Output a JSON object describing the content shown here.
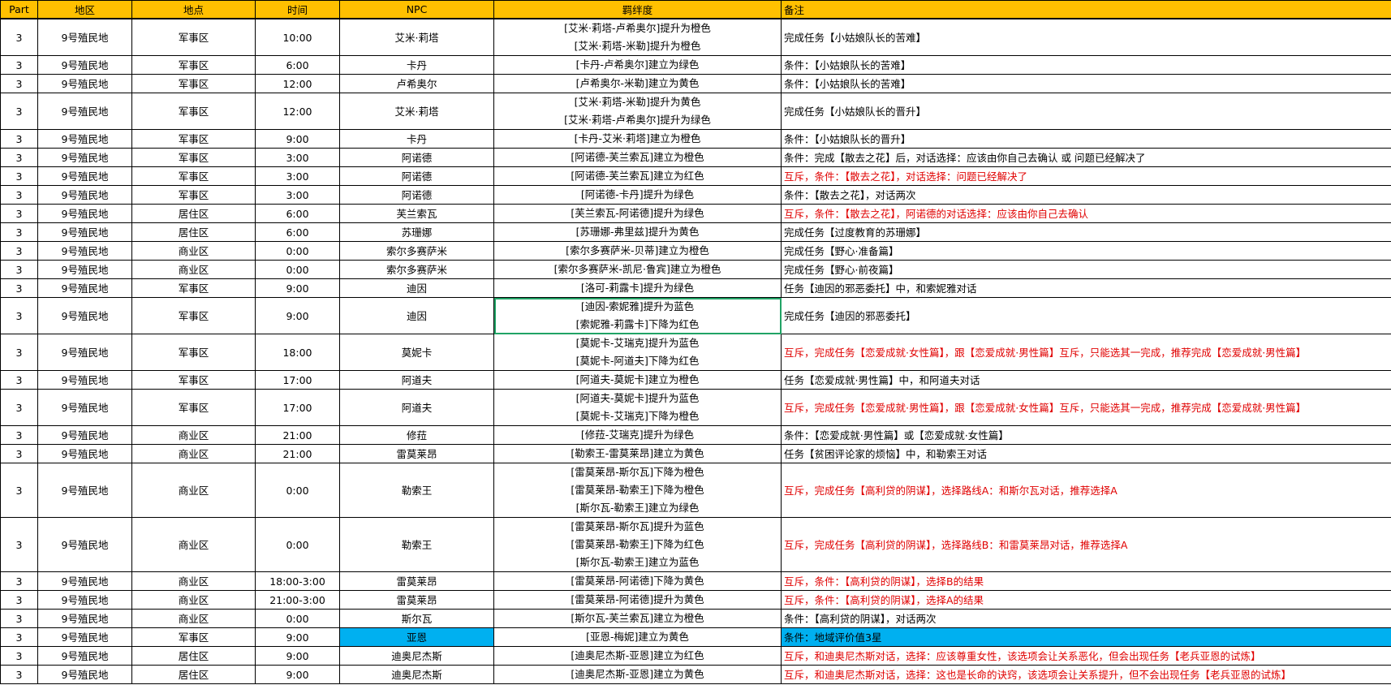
{
  "headers": [
    "Part",
    "地区",
    "地点",
    "时间",
    "NPC",
    "羁绊度",
    "备注"
  ],
  "colors": {
    "header_bg": "#FFC000",
    "highlight": "#00B0F0",
    "red_text": "#E00000",
    "selection": "#21A366"
  },
  "rows": [
    {
      "part": "3",
      "region": "9号殖民地",
      "place": "军事区",
      "time": "10:00",
      "npc": "艾米·莉塔",
      "bond": [
        "[艾米·莉塔-卢希奥尔]提升为橙色",
        "[艾米·莉塔-米勒]提升为橙色"
      ],
      "note": "完成任务【小姑娘队长的苦难】",
      "red": false
    },
    {
      "part": "3",
      "region": "9号殖民地",
      "place": "军事区",
      "time": "6:00",
      "npc": "卡丹",
      "bond": [
        "[卡丹-卢希奥尔]建立为绿色"
      ],
      "note": "条件：【小姑娘队长的苦难】",
      "red": false
    },
    {
      "part": "3",
      "region": "9号殖民地",
      "place": "军事区",
      "time": "12:00",
      "npc": "卢希奥尔",
      "bond": [
        "[卢希奥尔-米勒]建立为黄色"
      ],
      "note": "条件：【小姑娘队长的苦难】",
      "red": false
    },
    {
      "part": "3",
      "region": "9号殖民地",
      "place": "军事区",
      "time": "12:00",
      "npc": "艾米·莉塔",
      "bond": [
        "[艾米·莉塔-米勒]提升为黄色",
        "[艾米·莉塔-卢希奥尔]提升为绿色"
      ],
      "note": "完成任务【小姑娘队长的晋升】",
      "red": false
    },
    {
      "part": "3",
      "region": "9号殖民地",
      "place": "军事区",
      "time": "9:00",
      "npc": "卡丹",
      "bond": [
        "[卡丹-艾米·莉塔]建立为橙色"
      ],
      "note": "条件：【小姑娘队长的晋升】",
      "red": false
    },
    {
      "part": "3",
      "region": "9号殖民地",
      "place": "军事区",
      "time": "3:00",
      "npc": "阿诺德",
      "bond": [
        "[阿诺德-芙兰索瓦]建立为橙色"
      ],
      "note": "条件：完成【散去之花】后，对话选择：应该由你自己去确认 或 问题已经解决了",
      "red": false
    },
    {
      "part": "3",
      "region": "9号殖民地",
      "place": "军事区",
      "time": "3:00",
      "npc": "阿诺德",
      "bond": [
        "[阿诺德-芙兰索瓦]建立为红色"
      ],
      "note": "互斥，条件：【散去之花】，对话选择：问题已经解决了",
      "red": true
    },
    {
      "part": "3",
      "region": "9号殖民地",
      "place": "军事区",
      "time": "3:00",
      "npc": "阿诺德",
      "bond": [
        "[阿诺德-卡丹]提升为绿色"
      ],
      "note": "条件：【散去之花】，对话两次",
      "red": false
    },
    {
      "part": "3",
      "region": "9号殖民地",
      "place": "居住区",
      "time": "6:00",
      "npc": "芙兰索瓦",
      "bond": [
        "[芙兰索瓦-阿诺德]提升为绿色"
      ],
      "note": "互斥，条件：【散去之花】，阿诺德的对话选择：应该由你自己去确认",
      "red": true
    },
    {
      "part": "3",
      "region": "9号殖民地",
      "place": "居住区",
      "time": "6:00",
      "npc": "苏珊娜",
      "bond": [
        "[苏珊娜-弗里兹]提升为黄色"
      ],
      "note": "完成任务【过度教育的苏珊娜】",
      "red": false
    },
    {
      "part": "3",
      "region": "9号殖民地",
      "place": "商业区",
      "time": "0:00",
      "npc": "索尔多赛萨米",
      "bond": [
        "[索尔多赛萨米-贝蒂]建立为橙色"
      ],
      "note": "完成任务【野心·准备篇】",
      "red": false
    },
    {
      "part": "3",
      "region": "9号殖民地",
      "place": "商业区",
      "time": "0:00",
      "npc": "索尔多赛萨米",
      "bond": [
        "[索尔多赛萨米-凯尼·鲁宾]建立为橙色"
      ],
      "note": "完成任务【野心·前夜篇】",
      "red": false
    },
    {
      "part": "3",
      "region": "9号殖民地",
      "place": "军事区",
      "time": "9:00",
      "npc": "迪因",
      "bond": [
        "[洛可-莉露卡]提升为绿色"
      ],
      "note": "任务【迪因的邪恶委托】中，和索妮雅对话",
      "red": false
    },
    {
      "part": "3",
      "region": "9号殖民地",
      "place": "军事区",
      "time": "9:00",
      "npc": "迪因",
      "bond": [
        "[迪因-索妮雅]提升为蓝色",
        "[索妮雅-莉露卡]下降为红色"
      ],
      "note": "完成任务【迪因的邪恶委托】",
      "red": false,
      "selected": true
    },
    {
      "part": "3",
      "region": "9号殖民地",
      "place": "军事区",
      "time": "18:00",
      "npc": "莫妮卡",
      "bond": [
        "[莫妮卡-艾瑞克]提升为蓝色",
        "[莫妮卡-阿道夫]下降为红色"
      ],
      "note": "互斥，完成任务【恋爱成就·女性篇】，跟【恋爱成就·男性篇】互斥，只能选其一完成，推荐完成【恋爱成就·男性篇】",
      "red": true
    },
    {
      "part": "3",
      "region": "9号殖民地",
      "place": "军事区",
      "time": "17:00",
      "npc": "阿道夫",
      "bond": [
        "[阿道夫-莫妮卡]建立为橙色"
      ],
      "note": "任务【恋爱成就·男性篇】中，和阿道夫对话",
      "red": false
    },
    {
      "part": "3",
      "region": "9号殖民地",
      "place": "军事区",
      "time": "17:00",
      "npc": "阿道夫",
      "bond": [
        "[阿道夫-莫妮卡]提升为蓝色",
        "[莫妮卡-艾瑞克]下降为橙色"
      ],
      "note": "互斥，完成任务【恋爱成就·男性篇】，跟【恋爱成就·女性篇】互斥，只能选其一完成，推荐完成【恋爱成就·男性篇】",
      "red": true
    },
    {
      "part": "3",
      "region": "9号殖民地",
      "place": "商业区",
      "time": "21:00",
      "npc": "修菈",
      "bond": [
        "[修菈-艾瑞克]提升为绿色"
      ],
      "note": "条件：【恋爱成就·男性篇】或【恋爱成就·女性篇】",
      "red": false
    },
    {
      "part": "3",
      "region": "9号殖民地",
      "place": "商业区",
      "time": "21:00",
      "npc": "雷莫莱昂",
      "bond": [
        "[勒索王-雷莫莱昂]建立为黄色"
      ],
      "note": "任务【贫困评论家的烦恼】中，和勒索王对话",
      "red": false
    },
    {
      "part": "3",
      "region": "9号殖民地",
      "place": "商业区",
      "time": "0:00",
      "npc": "勒索王",
      "bond": [
        "[雷莫莱昂-斯尔瓦]下降为橙色",
        "[雷莫莱昂-勒索王]下降为橙色",
        "[斯尔瓦-勒索王]建立为绿色"
      ],
      "note": "互斥，完成任务【高利贷的阴谋】，选择路线A：和斯尔瓦对话，推荐选择A",
      "red": true
    },
    {
      "part": "3",
      "region": "9号殖民地",
      "place": "商业区",
      "time": "0:00",
      "npc": "勒索王",
      "bond": [
        "[雷莫莱昂-斯尔瓦]提升为蓝色",
        "[雷莫莱昂-勒索王]下降为红色",
        "[斯尔瓦-勒索王]建立为蓝色"
      ],
      "note": "互斥，完成任务【高利贷的阴谋】，选择路线B：和雷莫莱昂对话，推荐选择A",
      "red": true
    },
    {
      "part": "3",
      "region": "9号殖民地",
      "place": "商业区",
      "time": "18:00-3:00",
      "npc": "雷莫莱昂",
      "bond": [
        "[雷莫莱昂-阿诺德]下降为黄色"
      ],
      "note": "互斥，条件：【高利贷的阴谋】，选择B的结果",
      "red": true
    },
    {
      "part": "3",
      "region": "9号殖民地",
      "place": "商业区",
      "time": "21:00-3:00",
      "npc": "雷莫莱昂",
      "bond": [
        "[雷莫莱昂-阿诺德]提升为黄色"
      ],
      "note": "互斥，条件：【高利贷的阴谋】，选择A的结果",
      "red": true
    },
    {
      "part": "3",
      "region": "9号殖民地",
      "place": "商业区",
      "time": "0:00",
      "npc": "斯尔瓦",
      "bond": [
        "[斯尔瓦-芙兰索瓦]建立为橙色"
      ],
      "note": "条件：【高利贷的阴谋】，对话两次",
      "red": false
    },
    {
      "part": "3",
      "region": "9号殖民地",
      "place": "军事区",
      "time": "9:00",
      "npc": "亚恩",
      "bond": [
        "[亚恩-梅妮]建立为黄色"
      ],
      "note": "条件：地域评价值3星",
      "red": false,
      "highlight": true
    },
    {
      "part": "3",
      "region": "9号殖民地",
      "place": "居住区",
      "time": "9:00",
      "npc": "迪奥尼杰斯",
      "bond": [
        "[迪奥尼杰斯-亚恩]建立为红色"
      ],
      "note": "互斥，和迪奥尼杰斯对话，选择：应该尊重女性，该选项会让关系恶化，但会出现任务【老兵亚恩的试炼】",
      "red": true
    },
    {
      "part": "3",
      "region": "9号殖民地",
      "place": "居住区",
      "time": "9:00",
      "npc": "迪奥尼杰斯",
      "bond": [
        "[迪奥尼杰斯-亚恩]建立为黄色"
      ],
      "note": "互斥，和迪奥尼杰斯对话，选择：这也是长命的诀窍，该选项会让关系提升，但不会出现任务【老兵亚恩的试炼】",
      "red": true
    }
  ]
}
